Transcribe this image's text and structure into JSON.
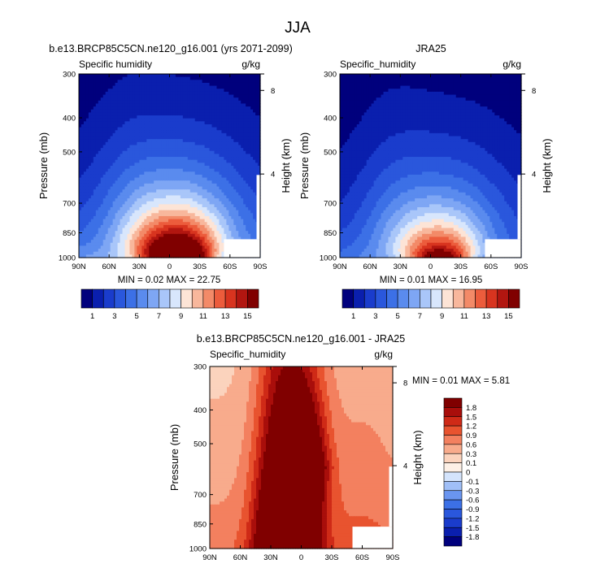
{
  "figure_title": "JJA",
  "chart_data": [
    {
      "type": "heatmap",
      "title": "b.e13.BRCP85C5CN.ne120_g16.001 (yrs 2071-2099)",
      "left_label": "Specific humidity",
      "units": "g/kg",
      "xlabel": "",
      "ylabel": "Pressure (mb)",
      "y2label": "Height (km)",
      "x_ticks": [
        "90N",
        "60N",
        "30N",
        "0",
        "30S",
        "60S",
        "90S"
      ],
      "y_ticks": [
        "300",
        "400",
        "500",
        "700",
        "850",
        "1000"
      ],
      "y2_ticks": [
        "8",
        "4"
      ],
      "stats": "MIN =  0.02  MAX = 22.75",
      "min": 0.02,
      "max": 22.75,
      "xlim": [
        -90,
        90
      ],
      "ylim_pressure": [
        1000,
        300
      ],
      "peak_lat": 8,
      "surface_value": 22.75,
      "colorbar_levels": [
        1,
        2,
        3,
        4,
        5,
        6,
        7,
        8,
        9,
        10,
        11,
        12,
        13,
        14,
        15
      ],
      "colorbar_labels": [
        "1",
        "3",
        "5",
        "7",
        "9",
        "11",
        "13",
        "15"
      ]
    },
    {
      "type": "heatmap",
      "title": "JRA25",
      "left_label": "Specific_humidity",
      "units": "g/kg",
      "xlabel": "",
      "ylabel": "Pressure (mb)",
      "y2label": "Height (km)",
      "x_ticks": [
        "90N",
        "60N",
        "30N",
        "0",
        "30S",
        "60S",
        "90S"
      ],
      "y_ticks": [
        "300",
        "400",
        "500",
        "700",
        "850",
        "1000"
      ],
      "y2_ticks": [
        "8",
        "4"
      ],
      "stats": "MIN =  0.01  MAX = 16.95",
      "min": 0.01,
      "max": 16.95,
      "xlim": [
        -90,
        90
      ],
      "ylim_pressure": [
        1000,
        300
      ],
      "peak_lat": 10,
      "surface_value": 16.95,
      "colorbar_levels": [
        1,
        2,
        3,
        4,
        5,
        6,
        7,
        8,
        9,
        10,
        11,
        12,
        13,
        14,
        15
      ],
      "colorbar_labels": [
        "1",
        "3",
        "5",
        "7",
        "9",
        "11",
        "13",
        "15"
      ]
    },
    {
      "type": "heatmap",
      "title": "b.e13.BRCP85C5CN.ne120_g16.001 - JRA25",
      "left_label": "Specific_humidity",
      "units": "g/kg",
      "xlabel": "",
      "ylabel": "Pressure (mb)",
      "y2label": "Height (km)",
      "x_ticks": [
        "90N",
        "60N",
        "30N",
        "0",
        "30S",
        "60S",
        "90S"
      ],
      "y_ticks": [
        "300",
        "400",
        "500",
        "700",
        "850",
        "1000"
      ],
      "y2_ticks": [
        "8",
        "4"
      ],
      "stats": "MIN =  0.01  MAX =  5.81",
      "min": 0.01,
      "max": 5.81,
      "xlim": [
        -90,
        90
      ],
      "ylim_pressure": [
        1000,
        300
      ],
      "colorbar_levels": [
        -1.8,
        -1.5,
        -1.2,
        -0.9,
        -0.6,
        -0.3,
        -0.1,
        0,
        0.1,
        0.3,
        0.6,
        0.9,
        1.2,
        1.5,
        1.8
      ],
      "colorbar_labels": [
        "1.8",
        "1.5",
        "1.2",
        "0.9",
        "0.6",
        "0.3",
        "0.1",
        "0",
        "-0.1",
        "-0.3",
        "-0.6",
        "-0.9",
        "-1.2",
        "-1.5",
        "-1.8"
      ]
    }
  ],
  "colors": {
    "seq": [
      "#00007d",
      "#0a1fae",
      "#1a3ccc",
      "#2a57dc",
      "#3c70e6",
      "#5a8bee",
      "#7ea6f4",
      "#a9c6f9",
      "#d8e6fc",
      "#fde4d6",
      "#f8b79c",
      "#f38a68",
      "#ec5c3c",
      "#d8341f",
      "#b21610",
      "#800000"
    ],
    "div": [
      "#00007d",
      "#0a1fae",
      "#1a3ccc",
      "#2a57dc",
      "#3c70e6",
      "#6a95f0",
      "#a0bff7",
      "#d4e4fc",
      "#fdf0e6",
      "#fbd3bd",
      "#f8ab8c",
      "#f3805f",
      "#e8532f",
      "#cf2a17",
      "#a90e0b",
      "#800000"
    ]
  }
}
